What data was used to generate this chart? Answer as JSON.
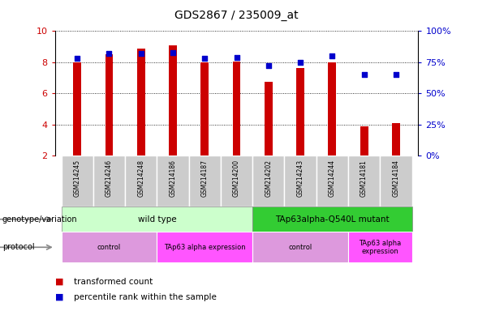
{
  "title": "GDS2867 / 235009_at",
  "samples": [
    "GSM214245",
    "GSM214246",
    "GSM214248",
    "GSM214186",
    "GSM214187",
    "GSM214200",
    "GSM214202",
    "GSM214243",
    "GSM214244",
    "GSM214181",
    "GSM214184"
  ],
  "transformed_count": [
    8.0,
    8.5,
    8.85,
    9.1,
    8.0,
    8.05,
    6.75,
    7.6,
    8.0,
    3.9,
    4.1
  ],
  "percentile_rank": [
    78,
    82,
    82,
    83,
    78,
    79,
    72,
    75,
    80,
    65,
    65
  ],
  "ylim_left": [
    2,
    10
  ],
  "ylim_right": [
    0,
    100
  ],
  "yticks_left": [
    2,
    4,
    6,
    8,
    10
  ],
  "yticks_right": [
    0,
    25,
    50,
    75,
    100
  ],
  "bar_color": "#cc0000",
  "dot_color": "#0000cc",
  "bar_bottom": 2,
  "bar_width": 0.25,
  "genotype_groups": [
    {
      "label": "wild type",
      "start": 0,
      "end": 6,
      "color": "#ccffcc"
    },
    {
      "label": "TAp63alpha-Q540L mutant",
      "start": 6,
      "end": 11,
      "color": "#33cc33"
    }
  ],
  "protocol_groups": [
    {
      "label": "control",
      "start": 0,
      "end": 3,
      "color": "#dd99dd"
    },
    {
      "label": "TAp63 alpha expression",
      "start": 3,
      "end": 6,
      "color": "#ff55ff"
    },
    {
      "label": "control",
      "start": 6,
      "end": 9,
      "color": "#dd99dd"
    },
    {
      "label": "TAp63 alpha\nexpression",
      "start": 9,
      "end": 11,
      "color": "#ff55ff"
    }
  ],
  "left_tick_color": "#cc0000",
  "right_tick_color": "#0000cc",
  "sample_label_bg": "#cccccc",
  "legend_items": [
    {
      "color": "#cc0000",
      "label": "transformed count"
    },
    {
      "color": "#0000cc",
      "label": "percentile rank within the sample"
    }
  ],
  "genotype_label": "genotype/variation",
  "protocol_label": "protocol"
}
